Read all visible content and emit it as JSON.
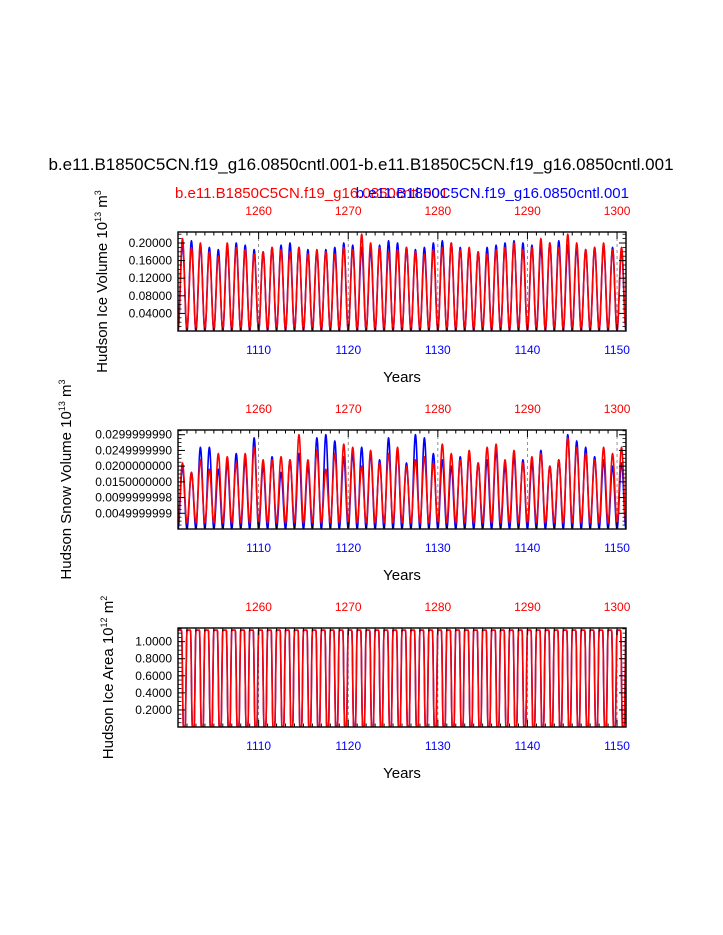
{
  "main_title": "b.e11.B1850C5CN.f19_g16.0850cntl.001-b.e11.B1850C5CN.f19_g16.0850cntl.001",
  "subtitle_red": "b.e11.B1850C5CN.f19_g16.0850cntl.001",
  "subtitle_blue": "b.e11.B1850C5CN.f19_g16.0850cntl.001",
  "colors": {
    "red": "#ff0000",
    "blue": "#0000ff",
    "axis": "#000000",
    "grid": "#777777"
  },
  "chart_data": [
    {
      "type": "line",
      "id": "ice-volume",
      "xlabel": "Years",
      "ylabel": "Hudson Ice Volume 10",
      "ylabel_exp": "13",
      "ylabel_unit": " m",
      "ylabel_unit_exp": "3",
      "ylim": [
        0,
        0.225
      ],
      "yticks": [
        0.04,
        0.08,
        0.12,
        0.16,
        0.2
      ],
      "ytick_labels": [
        "0.04000",
        "0.08000",
        "0.12000",
        "0.16000",
        "0.20000"
      ],
      "bottom_xlim": [
        1101,
        1151
      ],
      "bottom_xticks": [
        1110,
        1120,
        1130,
        1140,
        1150
      ],
      "bottom_xtick_labels": [
        "1110",
        "1120",
        "1130",
        "1140",
        "1150"
      ],
      "top_xlim": [
        1251,
        1301
      ],
      "top_xticks": [
        1260,
        1270,
        1280,
        1290,
        1300
      ],
      "top_xtick_labels": [
        "1260",
        "1270",
        "1280",
        "1290",
        "1300"
      ],
      "series": [
        {
          "name": "blue",
          "color": "#0000ff",
          "time_axis": "bottom",
          "cycle": "seasonal",
          "min": 0.0,
          "peaks": [
            0.2,
            0.205,
            0.195,
            0.19,
            0.185,
            0.19,
            0.2,
            0.195,
            0.185,
            0.18,
            0.19,
            0.195,
            0.2,
            0.19,
            0.185,
            0.18,
            0.185,
            0.19,
            0.2,
            0.195,
            0.19,
            0.185,
            0.195,
            0.205,
            0.2,
            0.19,
            0.185,
            0.19,
            0.2,
            0.205,
            0.2,
            0.19,
            0.185,
            0.18,
            0.19,
            0.195,
            0.2,
            0.205,
            0.2,
            0.195,
            0.19,
            0.2,
            0.205,
            0.195,
            0.19,
            0.185,
            0.19,
            0.195,
            0.19,
            0.185
          ]
        },
        {
          "name": "red",
          "color": "#ff0000",
          "time_axis": "top",
          "cycle": "seasonal",
          "min": 0.003,
          "peaks": [
            0.21,
            0.19,
            0.2,
            0.18,
            0.17,
            0.2,
            0.19,
            0.185,
            0.175,
            0.18,
            0.19,
            0.185,
            0.18,
            0.19,
            0.175,
            0.185,
            0.18,
            0.175,
            0.19,
            0.185,
            0.22,
            0.2,
            0.19,
            0.18,
            0.185,
            0.19,
            0.18,
            0.175,
            0.185,
            0.19,
            0.2,
            0.185,
            0.19,
            0.18,
            0.175,
            0.185,
            0.19,
            0.2,
            0.185,
            0.19,
            0.21,
            0.2,
            0.19,
            0.22,
            0.2,
            0.185,
            0.19,
            0.2,
            0.185,
            0.19
          ]
        }
      ]
    },
    {
      "type": "line",
      "id": "snow-volume",
      "xlabel": "Years",
      "ylabel": "Hudson Snow Volume 10",
      "ylabel_exp": "13",
      "ylabel_unit": " m",
      "ylabel_unit_exp": "3",
      "ylim": [
        0,
        0.0315
      ],
      "yticks": [
        0.005,
        0.01,
        0.015,
        0.02,
        0.025,
        0.03
      ],
      "ytick_labels": [
        "0.0049999999",
        "0.0099999998",
        "0.0150000000",
        "0.0200000000",
        "0.0249999990",
        "0.0299999990"
      ],
      "bottom_xlim": [
        1101,
        1151
      ],
      "bottom_xticks": [
        1110,
        1120,
        1130,
        1140,
        1150
      ],
      "bottom_xtick_labels": [
        "1110",
        "1120",
        "1130",
        "1140",
        "1150"
      ],
      "top_xlim": [
        1251,
        1301
      ],
      "top_xticks": [
        1260,
        1270,
        1280,
        1290,
        1300
      ],
      "top_xtick_labels": [
        "1260",
        "1270",
        "1280",
        "1290",
        "1300"
      ],
      "series": [
        {
          "name": "blue",
          "color": "#0000ff",
          "time_axis": "bottom",
          "cycle": "seasonal",
          "min": 0.0,
          "peaks": [
            0.02,
            0.018,
            0.026,
            0.026,
            0.019,
            0.021,
            0.024,
            0.022,
            0.029,
            0.02,
            0.023,
            0.018,
            0.022,
            0.024,
            0.02,
            0.029,
            0.03,
            0.028,
            0.023,
            0.024,
            0.026,
            0.024,
            0.022,
            0.029,
            0.025,
            0.021,
            0.03,
            0.029,
            0.024,
            0.022,
            0.02,
            0.023,
            0.024,
            0.021,
            0.022,
            0.025,
            0.02,
            0.023,
            0.022,
            0.021,
            0.025,
            0.02,
            0.022,
            0.03,
            0.028,
            0.026,
            0.023,
            0.022,
            0.02,
            0.021
          ]
        },
        {
          "name": "red",
          "color": "#ff0000",
          "time_axis": "top",
          "cycle": "seasonal",
          "min": 0.002,
          "peaks": [
            0.021,
            0.018,
            0.022,
            0.019,
            0.024,
            0.023,
            0.021,
            0.024,
            0.026,
            0.022,
            0.022,
            0.023,
            0.022,
            0.03,
            0.022,
            0.025,
            0.019,
            0.024,
            0.027,
            0.026,
            0.02,
            0.025,
            0.021,
            0.024,
            0.026,
            0.02,
            0.022,
            0.023,
            0.021,
            0.027,
            0.024,
            0.022,
            0.025,
            0.021,
            0.026,
            0.027,
            0.022,
            0.025,
            0.021,
            0.023,
            0.024,
            0.02,
            0.022,
            0.029,
            0.026,
            0.024,
            0.022,
            0.026,
            0.024,
            0.026
          ]
        }
      ]
    },
    {
      "type": "line",
      "id": "ice-area",
      "xlabel": "Years",
      "ylabel": "Hudson Ice Area 10",
      "ylabel_exp": "12",
      "ylabel_unit": " m",
      "ylabel_unit_exp": "2",
      "ylim": [
        0,
        1.16
      ],
      "yticks": [
        0.2,
        0.4,
        0.6,
        0.8,
        1.0
      ],
      "ytick_labels": [
        "0.2000",
        "0.4000",
        "0.6000",
        "0.8000",
        "1.0000"
      ],
      "bottom_xlim": [
        1101,
        1151
      ],
      "bottom_xticks": [
        1110,
        1120,
        1130,
        1140,
        1150
      ],
      "bottom_xtick_labels": [
        "1110",
        "1120",
        "1130",
        "1140",
        "1150"
      ],
      "top_xlim": [
        1251,
        1301
      ],
      "top_xticks": [
        1260,
        1270,
        1280,
        1290,
        1300
      ],
      "top_xtick_labels": [
        "1260",
        "1270",
        "1280",
        "1290",
        "1300"
      ],
      "series": [
        {
          "name": "blue",
          "color": "#0000ff",
          "time_axis": "bottom",
          "cycle": "plateau",
          "min": 0.0,
          "max": 1.135
        },
        {
          "name": "red",
          "color": "#ff0000",
          "time_axis": "top",
          "cycle": "plateau",
          "min": 0.0,
          "max": 1.135
        }
      ]
    }
  ]
}
